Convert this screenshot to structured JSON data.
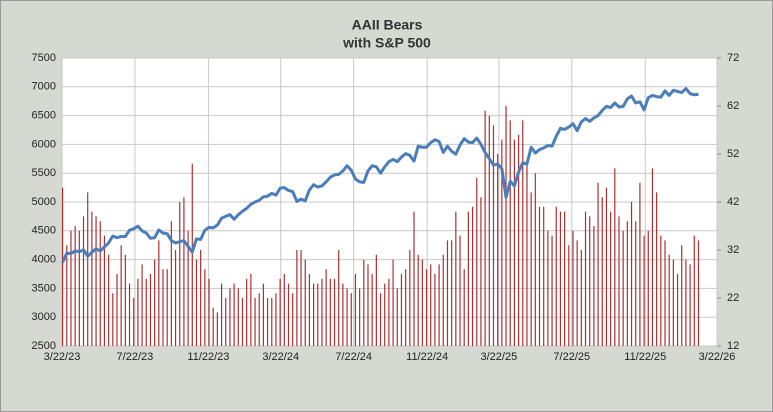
{
  "chart_data": {
    "type": "bar-line",
    "title": "AAII Bears",
    "subtitle": "with S&P 500",
    "x": [
      "3/23/23",
      "3/30/23",
      "4/6/23",
      "4/13/23",
      "4/20/23",
      "4/27/23",
      "5/4/23",
      "5/11/23",
      "5/18/23",
      "5/25/23",
      "6/1/23",
      "6/8/23",
      "6/15/23",
      "6/22/23",
      "6/29/23",
      "7/6/23",
      "7/13/23",
      "7/20/23",
      "7/27/23",
      "8/3/23",
      "8/10/23",
      "8/17/23",
      "8/24/23",
      "8/31/23",
      "9/7/23",
      "9/14/23",
      "9/21/23",
      "9/28/23",
      "10/5/23",
      "10/12/23",
      "10/19/23",
      "10/26/23",
      "11/2/23",
      "11/9/23",
      "11/16/23",
      "11/23/23",
      "11/30/23",
      "12/7/23",
      "12/14/23",
      "12/21/23",
      "12/28/23",
      "1/4/24",
      "1/11/24",
      "1/18/24",
      "1/25/24",
      "2/1/24",
      "2/8/24",
      "2/15/24",
      "2/22/24",
      "2/29/24",
      "3/7/24",
      "3/14/24",
      "3/21/24",
      "3/28/24",
      "4/4/24",
      "4/11/24",
      "4/18/24",
      "4/25/24",
      "5/2/24",
      "5/9/24",
      "5/16/24",
      "5/23/24",
      "5/30/24",
      "6/6/24",
      "6/13/24",
      "6/20/24",
      "6/27/24",
      "7/4/24",
      "7/11/24",
      "7/18/24",
      "7/25/24",
      "8/1/24",
      "8/8/24",
      "8/15/24",
      "8/22/24",
      "8/29/24",
      "9/5/24",
      "9/12/24",
      "9/19/24",
      "9/26/24",
      "10/3/24",
      "10/10/24",
      "10/17/24",
      "10/24/24",
      "10/31/24",
      "11/7/24",
      "11/14/24",
      "11/21/24",
      "11/28/24",
      "12/5/24",
      "12/12/24",
      "12/19/24",
      "12/26/24",
      "1/2/25",
      "1/9/25",
      "1/16/25",
      "1/23/25",
      "1/30/25",
      "2/6/25",
      "2/13/25",
      "2/20/25",
      "2/27/25",
      "3/6/25",
      "3/13/25",
      "3/20/25",
      "3/27/25",
      "4/3/25",
      "4/10/25",
      "4/17/25",
      "4/24/25",
      "5/1/25",
      "5/8/25",
      "5/15/25",
      "5/22/25",
      "5/29/25",
      "6/5/25",
      "6/12/25",
      "6/19/25",
      "6/26/25",
      "7/3/25",
      "7/10/25",
      "7/17/25",
      "7/24/25",
      "7/31/25",
      "8/7/25",
      "8/14/25",
      "8/21/25",
      "8/28/25",
      "9/4/25",
      "9/11/25",
      "9/18/25",
      "9/25/25",
      "10/2/25",
      "10/9/25",
      "10/16/25",
      "10/23/25",
      "10/30/25",
      "11/6/25",
      "11/13/25",
      "11/20/25",
      "11/27/25",
      "12/4/25",
      "12/11/25",
      "12/18/25",
      "12/25/25",
      "1/1/26",
      "1/8/26",
      "1/15/26",
      "1/22/26",
      "1/29/26",
      "2/5/26",
      "2/12/26",
      "2/19/26"
    ],
    "series": [
      {
        "type": "bar",
        "axis": "y2",
        "color": "#a83232",
        "values": [
          45,
          33,
          36,
          37,
          36,
          39,
          44,
          40,
          39,
          38,
          35,
          31,
          23,
          27,
          33,
          31,
          25,
          22,
          26,
          29,
          26,
          27,
          30,
          34,
          28,
          28,
          38,
          32,
          42,
          43,
          36,
          50,
          30,
          32,
          28,
          26,
          20,
          19,
          25,
          22,
          24,
          25,
          24,
          22,
          26,
          27,
          22,
          23,
          25,
          22,
          22,
          23,
          26,
          27,
          25,
          23,
          32,
          32,
          30,
          27,
          25,
          25,
          26,
          28,
          26,
          26,
          32,
          25,
          24,
          23,
          27,
          24,
          30,
          29,
          27,
          31,
          23,
          25,
          26,
          30,
          24,
          27,
          28,
          32,
          40,
          31,
          30,
          28,
          29,
          27,
          29,
          31,
          34,
          34,
          40,
          35,
          28,
          40,
          41,
          47,
          43,
          61,
          60,
          58,
          52,
          55,
          62,
          59,
          55,
          56,
          59,
          50,
          44,
          48,
          41,
          41,
          36,
          35,
          41,
          40,
          40,
          33,
          36,
          34,
          32,
          40,
          39,
          37,
          46,
          43,
          45,
          40,
          49,
          39,
          36,
          38,
          42,
          38,
          46,
          35,
          36,
          49,
          44,
          35,
          34,
          31,
          30,
          27,
          33,
          30,
          29,
          35,
          34
        ]
      },
      {
        "type": "line",
        "axis": "y",
        "color": "#4a7ebb",
        "values": [
          3950,
          4110,
          4105,
          4150,
          4135,
          4170,
          4060,
          4125,
          4190,
          4150,
          4220,
          4290,
          4410,
          4380,
          4400,
          4400,
          4510,
          4535,
          4580,
          4500,
          4460,
          4370,
          4380,
          4515,
          4460,
          4450,
          4330,
          4290,
          4310,
          4330,
          4230,
          4130,
          4360,
          4350,
          4510,
          4560,
          4550,
          4600,
          4720,
          4750,
          4780,
          4700,
          4780,
          4840,
          4890,
          4960,
          5000,
          5030,
          5090,
          5100,
          5150,
          5120,
          5240,
          5250,
          5200,
          5180,
          5010,
          5050,
          5020,
          5210,
          5300,
          5260,
          5280,
          5350,
          5430,
          5470,
          5480,
          5540,
          5630,
          5550,
          5400,
          5350,
          5340,
          5540,
          5630,
          5610,
          5500,
          5610,
          5700,
          5740,
          5700,
          5780,
          5840,
          5810,
          5710,
          5970,
          5950,
          5950,
          6030,
          6080,
          6050,
          5860,
          5970,
          5880,
          5830,
          5990,
          6100,
          6040,
          6030,
          6110,
          6000,
          5860,
          5750,
          5640,
          5660,
          5580,
          5080,
          5360,
          5280,
          5520,
          5680,
          5660,
          5950,
          5850,
          5910,
          5940,
          5980,
          5970,
          6140,
          6280,
          6260,
          6300,
          6360,
          6240,
          6390,
          6450,
          6400,
          6460,
          6500,
          6590,
          6660,
          6640,
          6720,
          6650,
          6660,
          6790,
          6840,
          6720,
          6740,
          6600,
          6810,
          6850,
          6830,
          6820,
          6930,
          6850,
          6940,
          6920,
          6900,
          6970,
          6880,
          6860,
          6870
        ]
      }
    ],
    "xlim": [
      "3/22/23",
      "3/22/26"
    ],
    "xticks": [
      "3/22/23",
      "7/22/23",
      "11/22/23",
      "3/22/24",
      "7/22/24",
      "11/22/24",
      "3/22/25",
      "7/22/25",
      "11/22/25",
      "3/22/26"
    ],
    "ylim": [
      2500,
      7500
    ],
    "yticks": [
      2500,
      3000,
      3500,
      4000,
      4500,
      5000,
      5500,
      6000,
      6500,
      7000,
      7500
    ],
    "y2lim": [
      12,
      72
    ],
    "y2ticks": [
      12,
      22,
      32,
      42,
      52,
      62,
      72
    ],
    "grid": true
  }
}
